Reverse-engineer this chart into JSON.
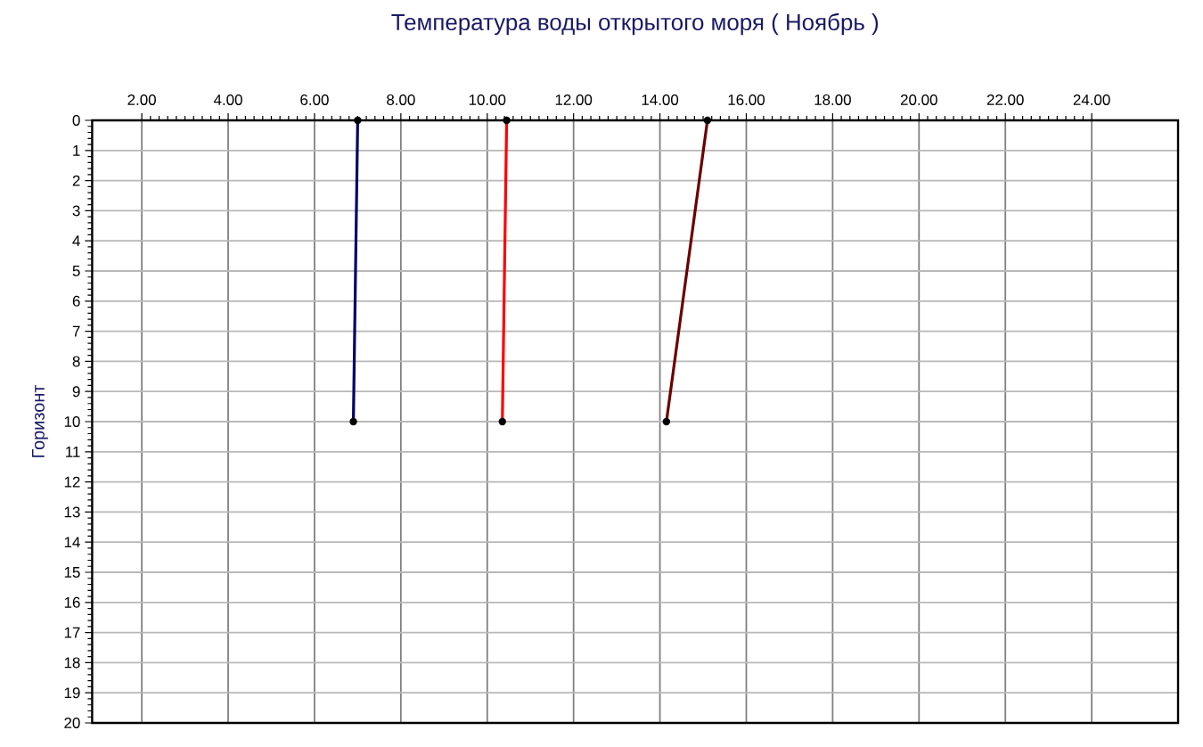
{
  "chart_data": {
    "type": "line",
    "title": "Температура воды открытого моря     ( Ноябрь )",
    "ylabel": "Горизонт",
    "series": [
      {
        "color": "#000066",
        "x": [
          7.0,
          6.9
        ],
        "values": [
          0,
          10
        ]
      },
      {
        "color": "#ff0000",
        "x": [
          10.45,
          10.35
        ],
        "values": [
          0,
          10
        ]
      },
      {
        "color": "#6b0000",
        "x": [
          15.1,
          14.15
        ],
        "values": [
          0,
          10
        ]
      }
    ],
    "xlim": [
      0.85,
      26
    ],
    "xticks": [
      {
        "value": 2,
        "label": "2.00"
      },
      {
        "value": 4,
        "label": "4.00"
      },
      {
        "value": 6,
        "label": "6.00"
      },
      {
        "value": 8,
        "label": "8.00"
      },
      {
        "value": 10,
        "label": "10.00"
      },
      {
        "value": 12,
        "label": "12.00"
      },
      {
        "value": 14,
        "label": "14.00"
      },
      {
        "value": 16,
        "label": "16.00"
      },
      {
        "value": 18,
        "label": "18.00"
      },
      {
        "value": 20,
        "label": "20.00"
      },
      {
        "value": 22,
        "label": "22.00"
      },
      {
        "value": 24,
        "label": "24.00"
      }
    ],
    "ylim": [
      20,
      0
    ],
    "yticks": [
      0,
      1,
      2,
      3,
      4,
      5,
      6,
      7,
      8,
      9,
      10,
      11,
      12,
      13,
      14,
      15,
      16,
      17,
      18,
      19,
      20
    ],
    "grid": true,
    "marker": "circle",
    "line_style": "solid"
  }
}
